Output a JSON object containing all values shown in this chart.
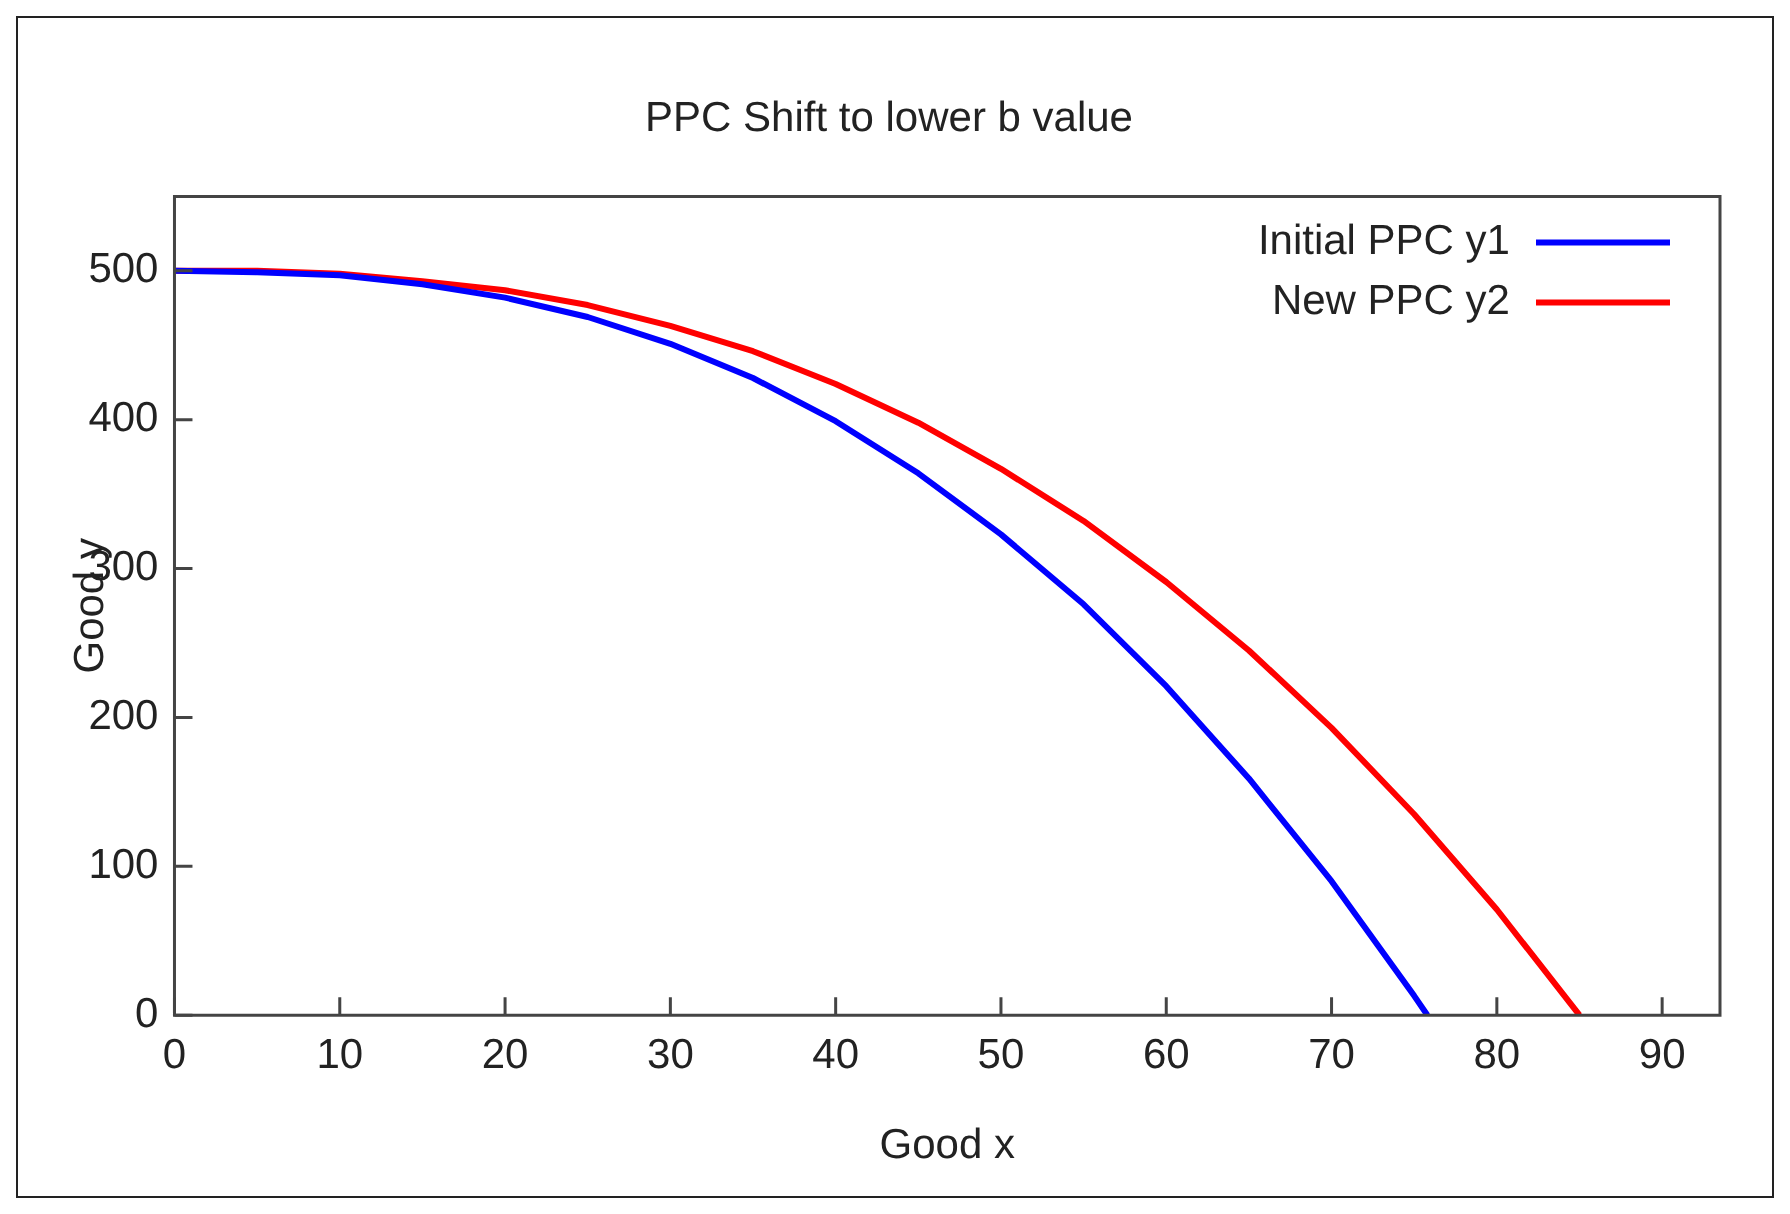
{
  "chart_data": {
    "type": "line",
    "title": "PPC Shift to lower b value",
    "xlabel": "Good x",
    "ylabel": "Good y",
    "xlim": [
      0,
      93.5
    ],
    "xticks": [
      0,
      10,
      20,
      30,
      40,
      50,
      60,
      70,
      80,
      90
    ],
    "ylim": [
      0,
      550
    ],
    "yticks": [
      0,
      100,
      200,
      300,
      400,
      500
    ],
    "grid": false,
    "legend": "top right",
    "marker": "none",
    "line_style": "solid",
    "series": [
      {
        "name": "Initial PPC y1",
        "color": "#0000ff",
        "x": [
          0,
          5,
          10,
          15,
          20,
          25,
          30,
          35,
          40,
          45,
          50,
          55,
          60,
          65,
          70,
          75,
          75.8
        ],
        "values": [
          500,
          499,
          497,
          491,
          482,
          469,
          451,
          428,
          399,
          364,
          323,
          276,
          221,
          159,
          90,
          13,
          0
        ]
      },
      {
        "name": "New PPC y2",
        "color": "#ff0000",
        "x": [
          0,
          5,
          10,
          15,
          20,
          25,
          30,
          35,
          40,
          45,
          50,
          55,
          60,
          65,
          70,
          75,
          80,
          85
        ],
        "values": [
          500,
          500,
          498,
          493,
          487,
          477,
          463,
          446,
          424,
          398,
          367,
          332,
          291,
          245,
          193,
          135,
          71,
          0
        ]
      }
    ]
  }
}
